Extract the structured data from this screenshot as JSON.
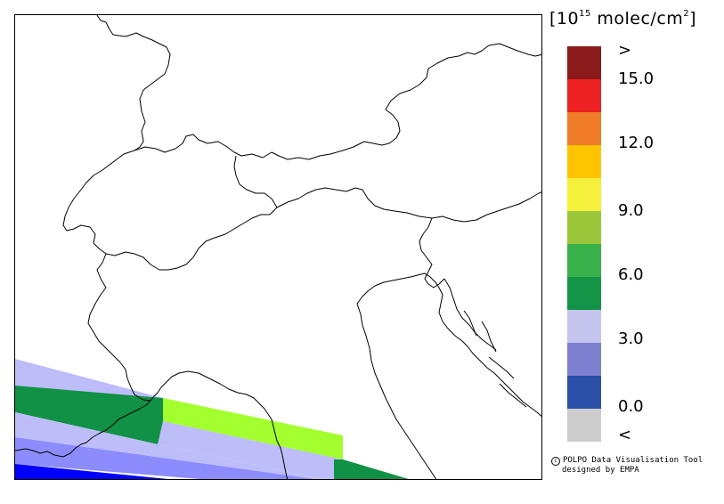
{
  "legend": {
    "unit_prefix": "[10",
    "unit_exponent": "15",
    "unit_suffix": " molec/cm",
    "unit_power": "2",
    "unit_close": "]",
    "colors": [
      "#8b1a1a",
      "#ee2222",
      "#f07b28",
      "#ffc400",
      "#f5f03c",
      "#9cc63a",
      "#38b14a",
      "#139447",
      "#c5c5f0",
      "#7c80cf",
      "#2a50a8",
      "#cccccc"
    ],
    "labels": [
      ">",
      "15.0",
      "12.0",
      "9.0",
      "6.0",
      "3.0",
      "0.0",
      "<"
    ]
  },
  "credit": {
    "line1": "POLPO Data Visualisation Tool",
    "line2": "designed by EMPA"
  },
  "swath_colors": {
    "pale_violet": "#bdbdfa",
    "light_blue": "#8c8cff",
    "deep_blue": "#0000ff",
    "green": "#119146",
    "yellow_green": "#a3ff2e"
  }
}
